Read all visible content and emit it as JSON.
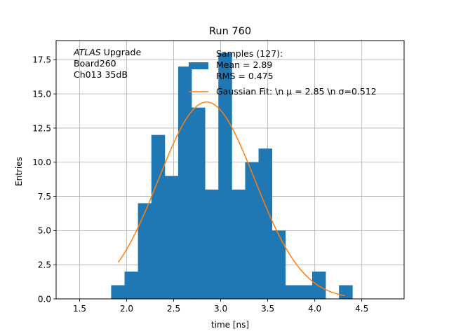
{
  "chart_data": {
    "type": "bar",
    "title": "Run 760",
    "xlabel": "time [ns]",
    "ylabel": "Entries",
    "xlim": [
      1.25,
      4.95
    ],
    "ylim": [
      0,
      18.9
    ],
    "xticks": [
      1.5,
      2.0,
      2.5,
      3.0,
      3.5,
      4.0,
      4.5
    ],
    "xtick_labels": [
      "1.5",
      "2.0",
      "2.5",
      "3.0",
      "3.5",
      "4.0",
      "4.5"
    ],
    "yticks": [
      0,
      2.5,
      5,
      7.5,
      10,
      12.5,
      15,
      17.5
    ],
    "ytick_labels": [
      "0.0",
      "2.5",
      "5.0",
      "7.5",
      "10.0",
      "12.5",
      "15.0",
      "17.5"
    ],
    "grid": true,
    "histogram": {
      "color": "#1f77b4",
      "bin_edges": [
        1.835,
        1.9775,
        2.12,
        2.2625,
        2.405,
        2.5475,
        2.69,
        2.8325,
        2.975,
        3.1175,
        3.26,
        3.4025,
        3.545,
        3.6875,
        3.83,
        3.9725,
        4.115,
        4.2575,
        4.4
      ],
      "counts": [
        1,
        2,
        7,
        12,
        9,
        17,
        14,
        8,
        18,
        8,
        10,
        11,
        5,
        1,
        1,
        2,
        0,
        1
      ]
    },
    "gaussian_fit": {
      "color": "#ff7f0e",
      "mu": 2.85,
      "sigma": 0.512,
      "amplitude": 14.4,
      "x_range": [
        1.91,
        4.32
      ]
    },
    "annotation_lines": [
      {
        "italic": "ATLAS",
        "rest": " Upgrade"
      },
      {
        "italic": "",
        "rest": "Board260"
      },
      {
        "italic": "",
        "rest": "Ch013 35dB"
      }
    ],
    "legend": {
      "placement": "top-right",
      "entries": [
        {
          "kind": "patch",
          "color": "#1f77b4",
          "lines": [
            "Samples (127):",
            " Mean = 2.89",
            " RMS = 0.475"
          ]
        },
        {
          "kind": "line",
          "color": "#ff7f0e",
          "lines": [
            "Gaussian Fit: \\n μ = 2.85 \\n σ=0.512"
          ]
        }
      ]
    }
  }
}
